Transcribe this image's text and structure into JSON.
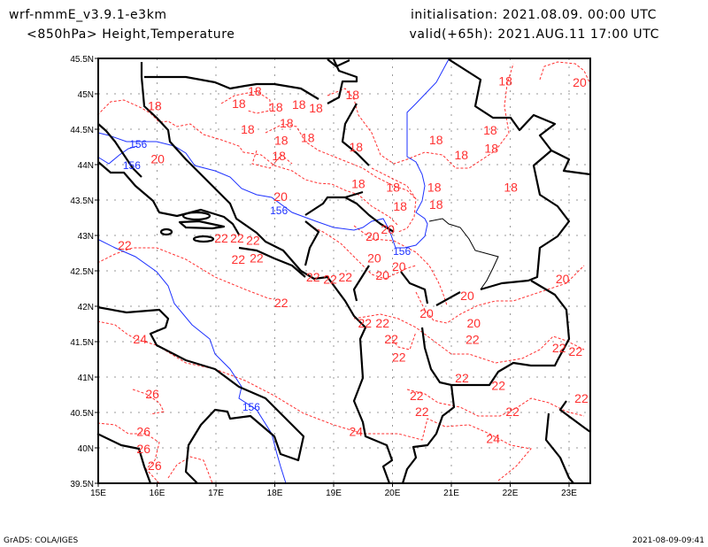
{
  "header": {
    "model": "wrf-nmmE_v3.9.1-e3km",
    "field": "<850hPa> Height,Temperature",
    "init": "initialisation: 2021.08.09.  00:00 UTC",
    "valid": "valid(+65h): 2021.AUG.11 17:00 UTC"
  },
  "footer": {
    "credit": "GrADS: COLA/IGES",
    "timestamp": "2021-08-09-09:41"
  },
  "map": {
    "lon_range": [
      15,
      23.35
    ],
    "lat_range": [
      39.5,
      45.5
    ],
    "lat_labels": [
      "45.5N",
      "45N",
      "44.5N",
      "44N",
      "43.5N",
      "43N",
      "42.5N",
      "42N",
      "41.5N",
      "41N",
      "40.5N",
      "40N",
      "39.5N"
    ],
    "lon_labels": [
      "15E",
      "16E",
      "17E",
      "18E",
      "19E",
      "20E",
      "21E",
      "22E",
      "23E"
    ],
    "colors": {
      "temperature": "#ff3030",
      "height": "#1e32ff",
      "coast": "#000000"
    },
    "temperature_labels": [
      {
        "t": "18",
        "lon": 17.66,
        "lat": 45.04
      },
      {
        "t": "18",
        "lon": 17.39,
        "lat": 44.86
      },
      {
        "t": "18",
        "lon": 15.96,
        "lat": 44.83
      },
      {
        "t": "18",
        "lon": 18.02,
        "lat": 44.81
      },
      {
        "t": "18",
        "lon": 18.41,
        "lat": 44.85
      },
      {
        "t": "18",
        "lon": 18.7,
        "lat": 44.8
      },
      {
        "t": "18",
        "lon": 19.32,
        "lat": 44.99
      },
      {
        "t": "18",
        "lon": 18.2,
        "lat": 44.64
      },
      {
        "t": "18",
        "lon": 17.54,
        "lat": 44.5
      },
      {
        "t": "18",
        "lon": 18.11,
        "lat": 44.43
      },
      {
        "t": "18",
        "lon": 18.56,
        "lat": 44.38
      },
      {
        "t": "18",
        "lon": 18.07,
        "lat": 44.25
      },
      {
        "t": "18",
        "lon": 19.38,
        "lat": 44.25
      },
      {
        "t": "18",
        "lon": 20.74,
        "lat": 44.35
      },
      {
        "t": "18",
        "lon": 21.66,
        "lat": 44.49
      },
      {
        "t": "18",
        "lon": 21.68,
        "lat": 44.23
      },
      {
        "t": "18",
        "lon": 21.17,
        "lat": 44.14
      },
      {
        "t": "18",
        "lon": 19.42,
        "lat": 43.73
      },
      {
        "t": "18",
        "lon": 20.01,
        "lat": 43.68
      },
      {
        "t": "18",
        "lon": 20.71,
        "lat": 43.68
      },
      {
        "t": "18",
        "lon": 20.13,
        "lat": 43.41
      },
      {
        "t": "18",
        "lon": 20.74,
        "lat": 43.49
      },
      {
        "t": "18",
        "lon": 22.01,
        "lat": 43.68
      },
      {
        "t": "18",
        "lon": 21.92,
        "lat": 45.18
      },
      {
        "t": "20",
        "lon": 16.01,
        "lat": 44.08
      },
      {
        "t": "20",
        "lon": 18.1,
        "lat": 43.5
      },
      {
        "t": "20",
        "lon": 19.66,
        "lat": 42.99
      },
      {
        "t": "20",
        "lon": 19.92,
        "lat": 43.09
      },
      {
        "t": "20",
        "lon": 19.69,
        "lat": 42.68
      },
      {
        "t": "20",
        "lon": 20.11,
        "lat": 42.65
      },
      {
        "t": "20",
        "lon": 19.83,
        "lat": 42.44
      },
      {
        "t": "20",
        "lon": 21.27,
        "lat": 42.15
      },
      {
        "t": "20",
        "lon": 20.58,
        "lat": 41.9
      },
      {
        "t": "20",
        "lon": 21.38,
        "lat": 41.76
      },
      {
        "t": "20",
        "lon": 22.89,
        "lat": 42.39
      },
      {
        "t": "20",
        "lon": 23.18,
        "lat": 45.16
      },
      {
        "t": "22",
        "lon": 15.45,
        "lat": 42.86
      },
      {
        "t": "22",
        "lon": 17.09,
        "lat": 42.96
      },
      {
        "t": "22",
        "lon": 17.36,
        "lat": 42.96
      },
      {
        "t": "22",
        "lon": 17.57,
        "lat": 42.93
      },
      {
        "t": "22",
        "lon": 17.69,
        "lat": 42.73
      },
      {
        "t": "22",
        "lon": 17.44,
        "lat": 42.66
      },
      {
        "t": "22",
        "lon": 18.65,
        "lat": 42.41
      },
      {
        "t": "22",
        "lon": 18.94,
        "lat": 42.38
      },
      {
        "t": "22",
        "lon": 19.2,
        "lat": 42.41
      },
      {
        "t": "22",
        "lon": 18.11,
        "lat": 42.05
      },
      {
        "t": "22",
        "lon": 19.53,
        "lat": 41.76
      },
      {
        "t": "22",
        "lon": 19.77,
        "lat": 41.76
      },
      {
        "t": "22",
        "lon": 19.98,
        "lat": 41.54
      },
      {
        "t": "22",
        "lon": 21.36,
        "lat": 41.58
      },
      {
        "t": "22",
        "lon": 21.18,
        "lat": 40.99
      },
      {
        "t": "22",
        "lon": 21.8,
        "lat": 40.88
      },
      {
        "t": "22",
        "lon": 22.83,
        "lat": 41.41
      },
      {
        "t": "22",
        "lon": 23.05,
        "lat": 41.36
      },
      {
        "t": "22",
        "lon": 20.41,
        "lat": 40.74
      },
      {
        "t": "22",
        "lon": 20.5,
        "lat": 40.6
      },
      {
        "t": "22",
        "lon": 22.04,
        "lat": 40.51
      },
      {
        "t": "22",
        "lon": 23.21,
        "lat": 40.7
      },
      {
        "t": "22",
        "lon": 20.11,
        "lat": 41.33
      },
      {
        "t": "24",
        "lon": 15.71,
        "lat": 41.54
      },
      {
        "t": "24",
        "lon": 19.38,
        "lat": 40.23
      },
      {
        "t": "24",
        "lon": 21.71,
        "lat": 40.13
      },
      {
        "t": "26",
        "lon": 15.92,
        "lat": 40.76
      },
      {
        "t": "26",
        "lon": 15.77,
        "lat": 40.23
      },
      {
        "t": "26",
        "lon": 15.77,
        "lat": 40.11
      },
      {
        "t": "26",
        "lon": 15.96,
        "lat": 39.75
      }
    ],
    "height_labels": [
      {
        "t": "156",
        "lon": 15.68,
        "lat": 44.3
      },
      {
        "t": "156",
        "lon": 15.57,
        "lat": 44.0
      },
      {
        "t": "156",
        "lon": 18.07,
        "lat": 43.36
      },
      {
        "t": "156",
        "lon": 20.16,
        "lat": 42.79
      },
      {
        "t": "156",
        "lon": 17.6,
        "lat": 40.59
      }
    ]
  }
}
